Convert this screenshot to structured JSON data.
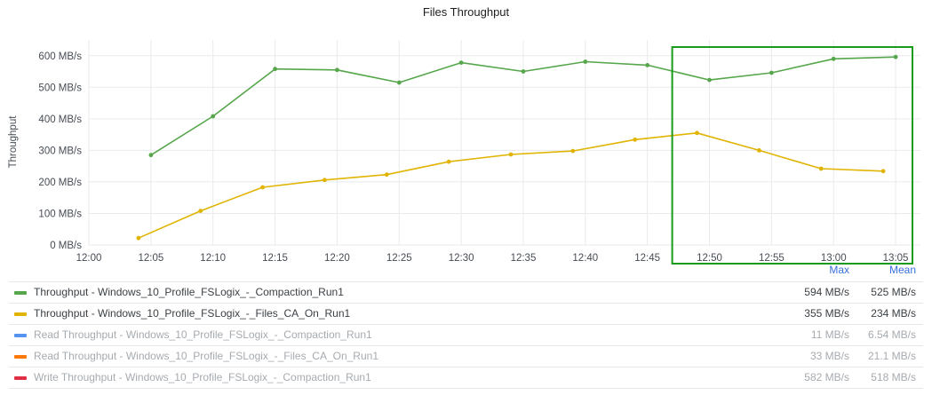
{
  "panel": {
    "title": "Files Throughput"
  },
  "chart_data": {
    "type": "line",
    "title": "Files Throughput",
    "ylabel": "Throughput",
    "xlabel": "",
    "unit": "MB/s",
    "ylim": [
      0,
      650
    ],
    "y_ticks": [
      "0 MB/s",
      "100 MB/s",
      "200 MB/s",
      "300 MB/s",
      "400 MB/s",
      "500 MB/s",
      "600 MB/s"
    ],
    "x_ticks": [
      "12:00",
      "12:05",
      "12:10",
      "12:15",
      "12:20",
      "12:25",
      "12:30",
      "12:35",
      "12:40",
      "12:45",
      "12:50",
      "12:55",
      "13:00",
      "13:05"
    ],
    "x_range": [
      "12:00",
      "13:07"
    ],
    "grid": true,
    "highlight_box": {
      "x": [
        "12:47",
        "13:07"
      ],
      "color": "#1a9a1a"
    },
    "series": [
      {
        "name": "Throughput - Windows_10_Profile_FSLogix_-_Compaction_Run1",
        "color": "#56a64b",
        "x": [
          "12:05",
          "12:10",
          "12:15",
          "12:20",
          "12:25",
          "12:30",
          "12:35",
          "12:40",
          "12:45",
          "12:50",
          "12:55",
          "13:00",
          "13:05"
        ],
        "values": [
          285,
          408,
          558,
          555,
          515,
          578,
          550,
          581,
          570,
          523,
          546,
          590,
          596
        ]
      },
      {
        "name": "Throughput - Windows_10_Profile_FSLogix_-_Files_CA_On_Run1",
        "color": "#e0b400",
        "x": [
          "12:04",
          "12:09",
          "12:14",
          "12:19",
          "12:24",
          "12:29",
          "12:34",
          "12:39",
          "12:44",
          "12:49",
          "12:54",
          "12:59",
          "13:04"
        ],
        "values": [
          22,
          108,
          183,
          206,
          223,
          264,
          287,
          298,
          334,
          355,
          300,
          242,
          234
        ]
      }
    ]
  },
  "legend": {
    "max_label": "Max",
    "mean_label": "Mean",
    "rows": [
      {
        "name": "Throughput - Windows_10_Profile_FSLogix_-_Compaction_Run1",
        "color": "#56a64b",
        "max": "594 MB/s",
        "mean": "525 MB/s",
        "hidden": false
      },
      {
        "name": "Throughput - Windows_10_Profile_FSLogix_-_Files_CA_On_Run1",
        "color": "#e0b400",
        "max": "355 MB/s",
        "mean": "234 MB/s",
        "hidden": false
      },
      {
        "name": "Read Throughput - Windows_10_Profile_FSLogix_-_Compaction_Run1",
        "color": "#5794f2",
        "max": "11 MB/s",
        "mean": "6.54 MB/s",
        "hidden": true
      },
      {
        "name": "Read Throughput - Windows_10_Profile_FSLogix_-_Files_CA_On_Run1",
        "color": "#ff780a",
        "max": "33 MB/s",
        "mean": "21.1 MB/s",
        "hidden": true
      },
      {
        "name": "Write Throughput - Windows_10_Profile_FSLogix_-_Compaction_Run1",
        "color": "#e02f44",
        "max": "582 MB/s",
        "mean": "518 MB/s",
        "hidden": true
      }
    ]
  }
}
